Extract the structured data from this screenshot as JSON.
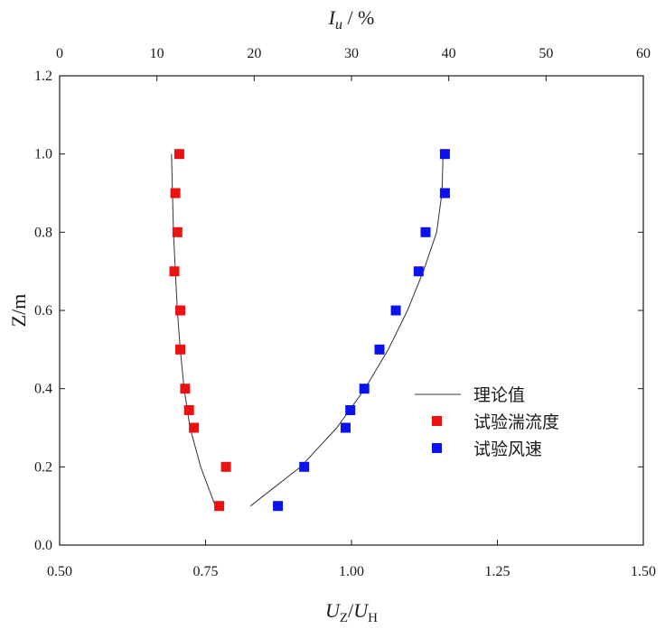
{
  "chart_data": {
    "type": "scatter",
    "title": "",
    "xlabel": {
      "main": "U",
      "sub1": "Z",
      "slash": "/",
      "main2": "U",
      "sub2": "H"
    },
    "x2label": {
      "main": "I",
      "sub": "u",
      "rest": " / %"
    },
    "ylabel": "Z/m",
    "xlim": [
      0.5,
      1.5
    ],
    "x2lim": [
      0,
      60
    ],
    "ylim": [
      0.0,
      1.2
    ],
    "xticks": [
      "0.50",
      "0.75",
      "1.00",
      "1.25",
      "1.50"
    ],
    "x2ticks": [
      "0",
      "10",
      "20",
      "30",
      "40",
      "50",
      "60"
    ],
    "yticks": [
      "0.0",
      "0.2",
      "0.4",
      "0.6",
      "0.8",
      "1.0",
      "1.2"
    ],
    "series": [
      {
        "name": "试验湍流度",
        "kind": "marker",
        "color": "#ee1111",
        "axis": "top",
        "points": [
          {
            "x": 16.4,
            "y": 0.1
          },
          {
            "x": 17.1,
            "y": 0.2
          },
          {
            "x": 13.8,
            "y": 0.3
          },
          {
            "x": 13.3,
            "y": 0.345
          },
          {
            "x": 12.9,
            "y": 0.4
          },
          {
            "x": 12.4,
            "y": 0.5
          },
          {
            "x": 12.4,
            "y": 0.6
          },
          {
            "x": 11.8,
            "y": 0.7
          },
          {
            "x": 12.1,
            "y": 0.8
          },
          {
            "x": 11.9,
            "y": 0.9
          },
          {
            "x": 12.3,
            "y": 1.0
          }
        ]
      },
      {
        "name": "试验风速",
        "kind": "marker",
        "color": "#0a12ee",
        "axis": "bottom",
        "points": [
          {
            "x": 0.874,
            "y": 0.1
          },
          {
            "x": 0.919,
            "y": 0.2
          },
          {
            "x": 0.99,
            "y": 0.3
          },
          {
            "x": 0.998,
            "y": 0.345
          },
          {
            "x": 1.022,
            "y": 0.4
          },
          {
            "x": 1.048,
            "y": 0.5
          },
          {
            "x": 1.076,
            "y": 0.6
          },
          {
            "x": 1.115,
            "y": 0.7
          },
          {
            "x": 1.127,
            "y": 0.8
          },
          {
            "x": 1.16,
            "y": 0.9
          },
          {
            "x": 1.16,
            "y": 1.0
          }
        ]
      },
      {
        "name": "理论值",
        "kind": "line",
        "color": "#333333",
        "lines": [
          {
            "axis": "top",
            "points": [
              {
                "x": 16.0,
                "y": 0.1
              },
              {
                "x": 14.5,
                "y": 0.2
              },
              {
                "x": 13.4,
                "y": 0.3
              },
              {
                "x": 12.8,
                "y": 0.4
              },
              {
                "x": 12.4,
                "y": 0.5
              },
              {
                "x": 12.1,
                "y": 0.6
              },
              {
                "x": 11.9,
                "y": 0.7
              },
              {
                "x": 11.7,
                "y": 0.8
              },
              {
                "x": 11.6,
                "y": 0.9
              },
              {
                "x": 11.5,
                "y": 1.0
              }
            ]
          },
          {
            "axis": "bottom",
            "points": [
              {
                "x": 0.827,
                "y": 0.1
              },
              {
                "x": 0.913,
                "y": 0.2
              },
              {
                "x": 0.975,
                "y": 0.3
              },
              {
                "x": 1.023,
                "y": 0.4
              },
              {
                "x": 1.063,
                "y": 0.5
              },
              {
                "x": 1.096,
                "y": 0.6
              },
              {
                "x": 1.123,
                "y": 0.7
              },
              {
                "x": 1.146,
                "y": 0.8
              },
              {
                "x": 1.155,
                "y": 0.9
              },
              {
                "x": 1.157,
                "y": 1.0
              }
            ]
          }
        ]
      }
    ],
    "legend": {
      "position": "center-right",
      "entries": [
        {
          "label": "理论值",
          "type": "line",
          "color": "#333333"
        },
        {
          "label": "试验湍流度",
          "type": "square",
          "color": "#ee1111"
        },
        {
          "label": "试验风速",
          "type": "square",
          "color": "#0a12ee"
        }
      ]
    }
  }
}
